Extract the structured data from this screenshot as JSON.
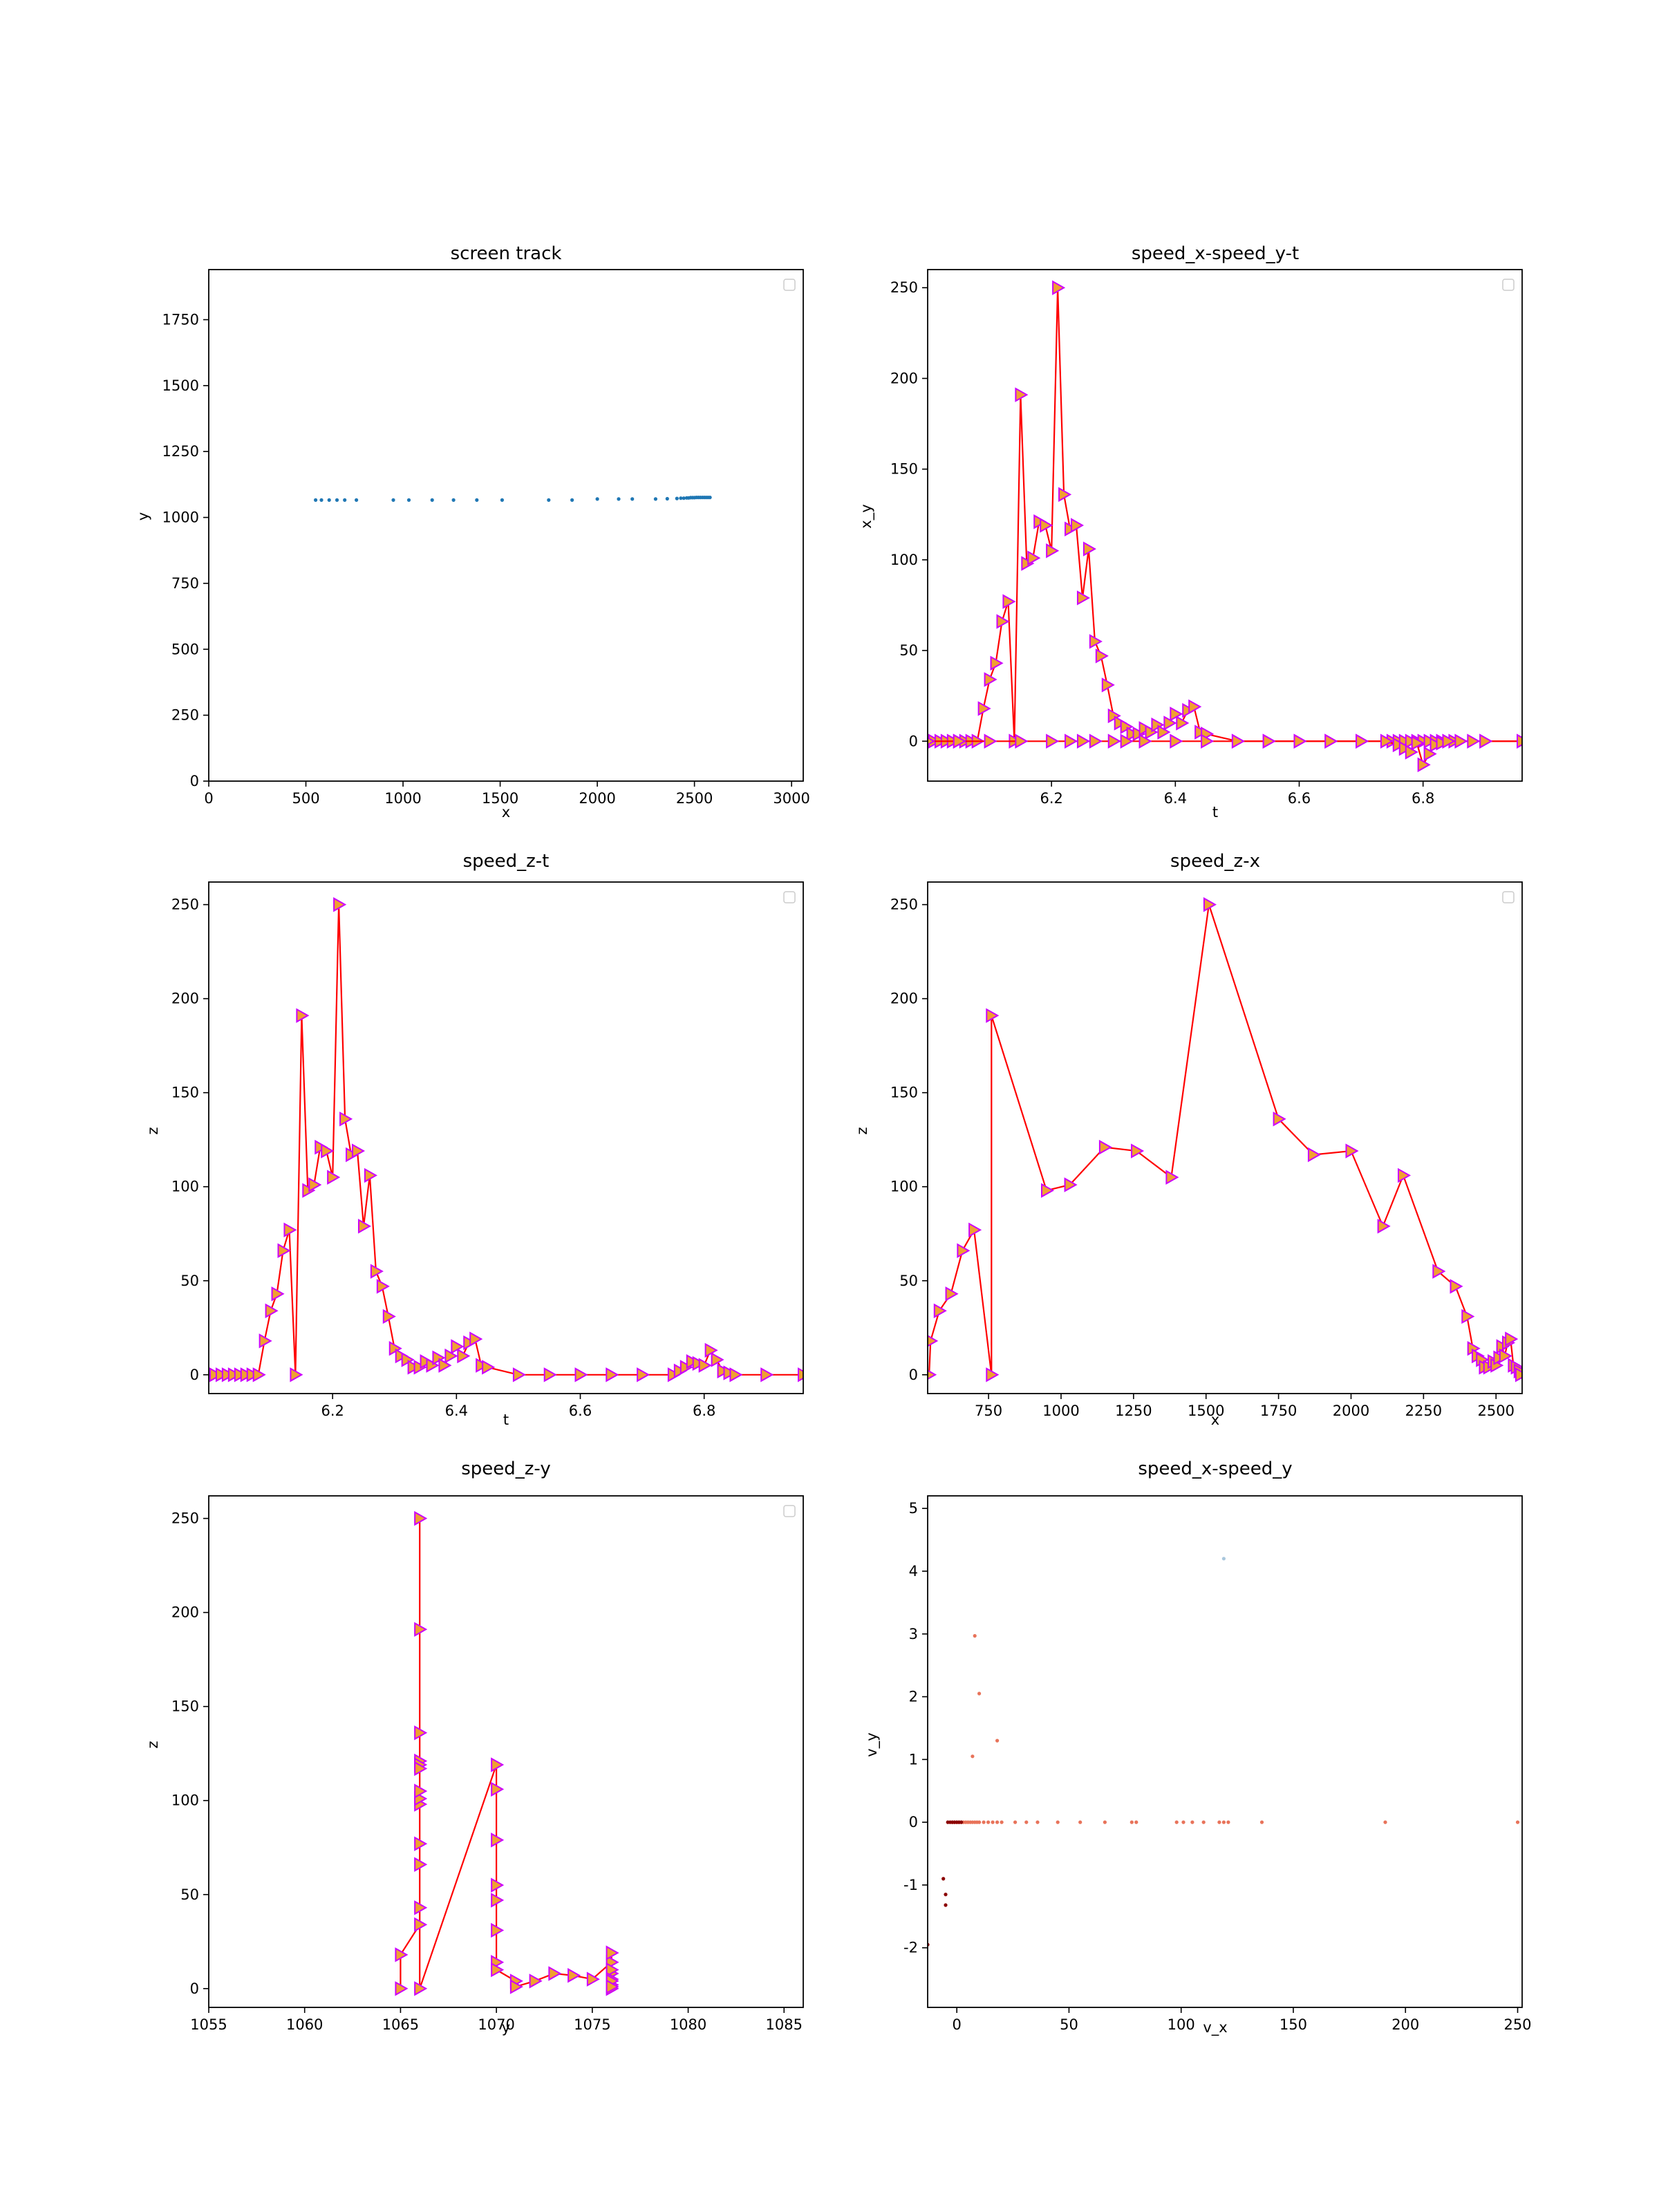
{
  "chart_data": [
    {
      "id": "p1",
      "type": "scatter",
      "title": "screen track",
      "xlabel": "x",
      "ylabel": "y",
      "xlim": [
        0,
        3060
      ],
      "ylim": [
        0,
        1940
      ],
      "xticks": [
        0,
        500,
        1000,
        1500,
        2000,
        2500,
        3000
      ],
      "yticks": [
        0,
        250,
        500,
        750,
        1000,
        1250,
        1500,
        1750
      ],
      "legend": "top-right",
      "series": [
        {
          "color": "#1f77b4",
          "marker": "dot",
          "line": false,
          "x": [
            550,
            580,
            620,
            660,
            700,
            760,
            950,
            1030,
            1150,
            1260,
            1380,
            1510,
            1750,
            1870,
            2000,
            2110,
            2180,
            2300,
            2360,
            2410,
            2430,
            2445,
            2460,
            2470,
            2480,
            2490,
            2500,
            2510,
            2520,
            2530,
            2540,
            2550,
            2560,
            2570,
            2580
          ],
          "y": [
            1066,
            1066,
            1066,
            1066,
            1066,
            1066,
            1066,
            1066,
            1066,
            1066,
            1066,
            1066,
            1066,
            1066,
            1070,
            1070,
            1070,
            1070,
            1071,
            1072,
            1073,
            1073,
            1074,
            1074,
            1075,
            1075,
            1075,
            1076,
            1076,
            1076,
            1076,
            1076,
            1076,
            1076,
            1076
          ]
        }
      ]
    },
    {
      "id": "p2",
      "type": "line",
      "title": "speed_x-speed_y-t",
      "xlabel": "t",
      "ylabel": "x_y",
      "xlim": [
        6.0,
        6.96
      ],
      "ylim": [
        -22,
        260
      ],
      "xticks": [
        6.2,
        6.4,
        6.6,
        6.8
      ],
      "xtick_labels": [
        "6.2",
        "6.4",
        "6.6",
        "6.8"
      ],
      "yticks": [
        0,
        50,
        100,
        150,
        200,
        250
      ],
      "legend": "top-right",
      "series": [
        {
          "color": "#ff0000",
          "marker": "triangle",
          "x": [
            6.0,
            6.01,
            6.02,
            6.03,
            6.04,
            6.05,
            6.06,
            6.07,
            6.08,
            6.09,
            6.1,
            6.11,
            6.12,
            6.13,
            6.14,
            6.15,
            6.16,
            6.17,
            6.18,
            6.19,
            6.2,
            6.21,
            6.22,
            6.23,
            6.24,
            6.25,
            6.26,
            6.27,
            6.28,
            6.29,
            6.3,
            6.31,
            6.32,
            6.33,
            6.34,
            6.35,
            6.36,
            6.37,
            6.38,
            6.39,
            6.4,
            6.41,
            6.42,
            6.43,
            6.44,
            6.45,
            6.5,
            6.55,
            6.6,
            6.65,
            6.7,
            6.75,
            6.76,
            6.77,
            6.78,
            6.79,
            6.8,
            6.81,
            6.82,
            6.83,
            6.84,
            6.85,
            6.9,
            6.96
          ],
          "y": [
            0,
            0,
            0,
            0,
            0,
            0,
            0,
            0,
            0,
            18,
            34,
            43,
            66,
            77,
            0,
            191,
            98,
            101,
            121,
            119,
            105,
            250,
            136,
            117,
            119,
            79,
            106,
            55,
            47,
            31,
            14,
            10,
            8,
            4,
            4,
            7,
            5,
            9,
            5,
            10,
            15,
            10,
            17,
            19,
            5,
            4,
            0,
            0,
            0,
            0,
            0,
            0,
            0,
            0,
            0,
            0,
            0,
            0,
            0,
            0,
            0,
            0,
            0,
            0
          ]
        },
        {
          "color": "#ff0000",
          "marker": "triangle",
          "x": [
            6.0,
            6.05,
            6.1,
            6.15,
            6.2,
            6.23,
            6.25,
            6.27,
            6.3,
            6.32,
            6.35,
            6.4,
            6.45,
            6.5,
            6.55,
            6.6,
            6.65,
            6.7,
            6.74,
            6.76,
            6.77,
            6.78,
            6.79,
            6.8,
            6.81,
            6.82,
            6.83,
            6.84,
            6.86,
            6.88,
            6.9,
            6.96
          ],
          "y": [
            0,
            0,
            0,
            0,
            0,
            0,
            0,
            0,
            0,
            0,
            0,
            0,
            0,
            0,
            0,
            0,
            0,
            0,
            0,
            -2,
            -4,
            -6,
            -1,
            -13,
            -7,
            -2,
            -1,
            0,
            0,
            0,
            0,
            0
          ]
        }
      ]
    },
    {
      "id": "p3",
      "type": "line",
      "title": "speed_z-t",
      "xlabel": "t",
      "ylabel": "z",
      "xlim": [
        6.0,
        6.96
      ],
      "ylim": [
        -10,
        262
      ],
      "xticks": [
        6.2,
        6.4,
        6.6,
        6.8
      ],
      "xtick_labels": [
        "6.2",
        "6.4",
        "6.6",
        "6.8"
      ],
      "yticks": [
        0,
        50,
        100,
        150,
        200,
        250
      ],
      "legend": "top-right",
      "series": [
        {
          "color": "#ff0000",
          "marker": "triangle",
          "x": [
            6.0,
            6.01,
            6.02,
            6.03,
            6.04,
            6.05,
            6.06,
            6.07,
            6.08,
            6.09,
            6.1,
            6.11,
            6.12,
            6.13,
            6.14,
            6.15,
            6.16,
            6.17,
            6.18,
            6.19,
            6.2,
            6.21,
            6.22,
            6.23,
            6.24,
            6.25,
            6.26,
            6.27,
            6.28,
            6.29,
            6.3,
            6.31,
            6.32,
            6.33,
            6.34,
            6.35,
            6.36,
            6.37,
            6.38,
            6.39,
            6.4,
            6.41,
            6.42,
            6.43,
            6.44,
            6.45,
            6.5,
            6.55,
            6.6,
            6.65,
            6.7,
            6.75,
            6.76,
            6.77,
            6.78,
            6.79,
            6.8,
            6.81,
            6.82,
            6.83,
            6.84,
            6.85,
            6.9,
            6.96
          ],
          "y": [
            0,
            0,
            0,
            0,
            0,
            0,
            0,
            0,
            0,
            18,
            34,
            43,
            66,
            77,
            0,
            191,
            98,
            101,
            121,
            119,
            105,
            250,
            136,
            117,
            119,
            79,
            106,
            55,
            47,
            31,
            14,
            10,
            8,
            4,
            4,
            7,
            5,
            9,
            5,
            10,
            15,
            10,
            17,
            19,
            5,
            4,
            0,
            0,
            0,
            0,
            0,
            0,
            2,
            4,
            7,
            6,
            5,
            13,
            8,
            2,
            1,
            0,
            0,
            0
          ]
        }
      ]
    },
    {
      "id": "p4",
      "type": "line",
      "title": "speed_z-x",
      "xlabel": "x",
      "ylabel": "z",
      "xlim": [
        540,
        2590
      ],
      "ylim": [
        -10,
        262
      ],
      "xticks": [
        750,
        1000,
        1250,
        1500,
        1750,
        2000,
        2250,
        2500
      ],
      "yticks": [
        0,
        50,
        100,
        150,
        200,
        250
      ],
      "legend": "top-right",
      "series": [
        {
          "color": "#ff0000",
          "marker": "triangle",
          "x": [
            545,
            550,
            580,
            620,
            660,
            700,
            760,
            760,
            950,
            1030,
            1150,
            1260,
            1380,
            1510,
            1750,
            1870,
            2000,
            2110,
            2180,
            2300,
            2360,
            2400,
            2420,
            2435,
            2450,
            2460,
            2475,
            2490,
            2500,
            2510,
            2520,
            2530,
            2540,
            2550,
            2560,
            2570,
            2580,
            2585
          ],
          "y": [
            0,
            18,
            34,
            43,
            66,
            77,
            0,
            191,
            98,
            101,
            121,
            119,
            105,
            250,
            136,
            117,
            119,
            79,
            106,
            55,
            47,
            31,
            14,
            10,
            8,
            4,
            4,
            7,
            5,
            9,
            15,
            10,
            17,
            19,
            5,
            4,
            2,
            0
          ]
        }
      ]
    },
    {
      "id": "p5",
      "type": "line",
      "title": "speed_z-y",
      "xlabel": "y",
      "ylabel": "z",
      "xlim": [
        1055,
        1086
      ],
      "ylim": [
        -10,
        262
      ],
      "xticks": [
        1055,
        1060,
        1065,
        1070,
        1075,
        1080,
        1085
      ],
      "yticks": [
        0,
        50,
        100,
        150,
        200,
        250
      ],
      "legend": "top-right",
      "series": [
        {
          "color": "#ff0000",
          "marker": "triangle",
          "x": [
            1065,
            1065,
            1066,
            1066,
            1066,
            1066,
            1066,
            1066,
            1066,
            1066,
            1066,
            1066,
            1066,
            1066,
            1066,
            1066,
            1070,
            1070,
            1070,
            1070,
            1070,
            1070,
            1070,
            1070,
            1071,
            1071,
            1072,
            1073,
            1074,
            1075,
            1076,
            1076,
            1076,
            1076,
            1076,
            1076,
            1076,
            1076,
            1076
          ],
          "y": [
            0,
            18,
            34,
            43,
            66,
            77,
            98,
            101,
            105,
            121,
            119,
            250,
            191,
            136,
            117,
            0,
            119,
            79,
            106,
            55,
            47,
            31,
            14,
            10,
            4,
            1,
            4,
            8,
            7,
            5,
            14,
            8,
            19,
            10,
            5,
            2,
            4,
            0,
            1
          ]
        }
      ]
    },
    {
      "id": "p6",
      "type": "scatter",
      "title": "speed_x-speed_y",
      "xlabel": "v_x",
      "ylabel": "v_y",
      "xlim": [
        -13,
        252
      ],
      "ylim": [
        -2.95,
        5.2
      ],
      "xticks": [
        0,
        50,
        100,
        150,
        200,
        250
      ],
      "yticks": [
        -2,
        -1,
        0,
        1,
        2,
        3,
        4,
        5
      ],
      "series": [
        {
          "color": "#e8735a",
          "marker": "dot",
          "x": [
            -2,
            -1,
            0,
            1,
            2,
            3,
            4,
            5,
            6,
            7,
            8,
            9,
            10,
            12,
            14,
            16,
            18,
            20,
            26,
            31,
            36,
            45,
            55,
            66,
            78,
            80,
            98,
            101,
            105,
            110,
            117,
            119,
            121,
            136,
            191,
            250,
            7,
            8,
            10,
            18
          ],
          "y": [
            0,
            0,
            0,
            0,
            0,
            0,
            0,
            0,
            0,
            0,
            0,
            0,
            0,
            0,
            0,
            0,
            0,
            0,
            0,
            0,
            0,
            0,
            0,
            0,
            0,
            0,
            0,
            0,
            0,
            0,
            0,
            0,
            0,
            0,
            0,
            0,
            1.05,
            2.97,
            2.05,
            1.3
          ]
        },
        {
          "color": "#8b0000",
          "marker": "dot",
          "x": [
            -13,
            -6,
            -5,
            -5,
            -4,
            -3,
            -2,
            -1,
            0,
            1,
            2
          ],
          "y": [
            -1.95,
            -0.9,
            -1.15,
            -1.32,
            0,
            0,
            0,
            0,
            0,
            0,
            0
          ]
        },
        {
          "color": "#a9c7dd",
          "marker": "dot",
          "x": [
            119
          ],
          "y": [
            4.2
          ]
        }
      ]
    }
  ]
}
